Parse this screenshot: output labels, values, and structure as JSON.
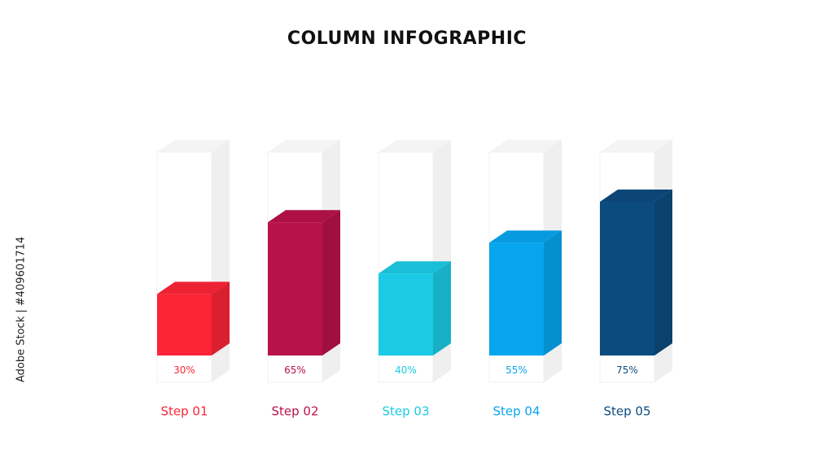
{
  "chart_data": {
    "type": "bar",
    "title": "COLUMN INFOGRAPHIC",
    "categories": [
      "Step 01",
      "Step 02",
      "Step 03",
      "Step 04",
      "Step 05"
    ],
    "values": [
      30,
      65,
      40,
      55,
      75
    ],
    "value_labels": [
      "30%",
      "65%",
      "40%",
      "55%",
      "75%"
    ],
    "colors": [
      "#fb2537",
      "#b8124a",
      "#1bcbe5",
      "#07a5ee",
      "#0c4b7e"
    ]
  },
  "watermark": "Adobe Stock | #409601714"
}
